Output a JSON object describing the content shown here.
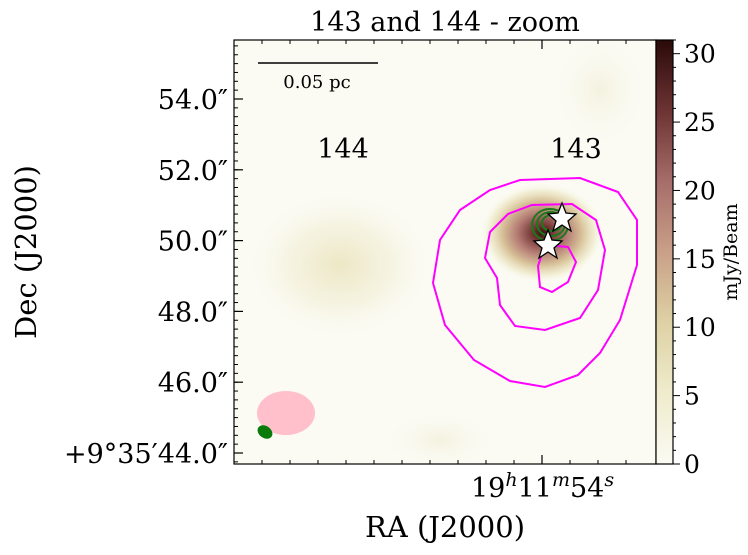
{
  "chart_data": {
    "type": "heatmap",
    "title": "143 and 144 - zoom",
    "xlabel": "RA (J2000)",
    "ylabel": "Dec (J2000)",
    "x_ticks": [
      {
        "value": "19h11m54s",
        "label_parts": [
          "19",
          "h",
          "11",
          "m",
          "54",
          "s"
        ]
      }
    ],
    "y_ticks": [
      {
        "value_arcsec": 54.0,
        "label": "54.0″"
      },
      {
        "value_arcsec": 52.0,
        "label": "52.0″"
      },
      {
        "value_arcsec": 50.0,
        "label": "50.0″"
      },
      {
        "value_arcsec": 48.0,
        "label": "48.0″"
      },
      {
        "value_arcsec": 46.0,
        "label": "46.0″"
      },
      {
        "value_arcsec": 44.0,
        "label": "+9°35′44.0″"
      }
    ],
    "colorbar": {
      "label": "mJy/Beam",
      "range": [
        0,
        31
      ],
      "ticks": [
        0,
        5,
        10,
        15,
        20,
        25,
        30
      ],
      "colors": [
        "#fbfbf3",
        "#efebcc",
        "#ddd0a3",
        "#c9a088",
        "#a86f6c",
        "#6e3434",
        "#2a0a08"
      ]
    },
    "sources": [
      {
        "name": "144",
        "label": "144"
      },
      {
        "name": "143",
        "label": "143"
      }
    ],
    "scalebar": {
      "label": "0.05 pc"
    },
    "contour_colors": {
      "magenta": "#ff00ff",
      "green": "#1a7a1a"
    },
    "beam_colors": {
      "large": "#ffc0cb",
      "small": "#0a7a0a"
    }
  }
}
